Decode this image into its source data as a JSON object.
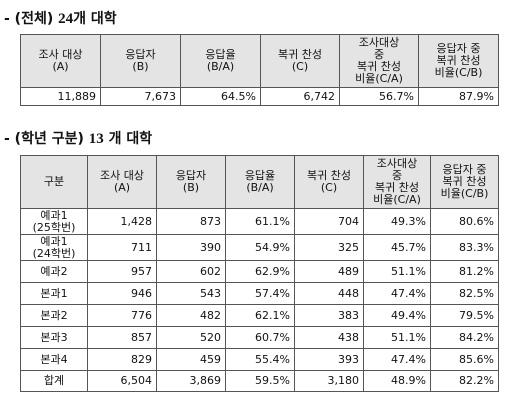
{
  "section1": {
    "title_prefix": "- (전체)",
    "title_num": "24",
    "title_suffix": "개 대학"
  },
  "section2": {
    "title_prefix": "- (학년 구분)",
    "title_num": "13",
    "title_suffix": "개 대학"
  },
  "headers": {
    "category": "구분",
    "survey": [
      "조사 대상",
      "(A)"
    ],
    "respondents": [
      "응답자",
      "(B)"
    ],
    "rate": [
      "응답율",
      "(B/A)"
    ],
    "return_agree": [
      "복귀 찬성",
      "(C)"
    ],
    "ratio_ca": [
      "조사대상",
      "중",
      "복귀 찬성",
      "비율(C/A)"
    ],
    "ratio_cb": [
      "응답자 중",
      "복귀 찬성",
      "비율(C/B)"
    ]
  },
  "table1": {
    "row": [
      "11,889",
      "7,673",
      "64.5%",
      "6,742",
      "56.7%",
      "87.9%"
    ]
  },
  "table2": {
    "rows": [
      {
        "label": [
          "예과1",
          "(25학번)"
        ],
        "cells": [
          "1,428",
          "873",
          "61.1%",
          "704",
          "49.3%",
          "80.6%"
        ]
      },
      {
        "label": [
          "예과1",
          "(24학번)"
        ],
        "cells": [
          "711",
          "390",
          "54.9%",
          "325",
          "45.7%",
          "83.3%"
        ]
      },
      {
        "label": [
          "예과2"
        ],
        "cells": [
          "957",
          "602",
          "62.9%",
          "489",
          "51.1%",
          "81.2%"
        ]
      },
      {
        "label": [
          "본과1"
        ],
        "cells": [
          "946",
          "543",
          "57.4%",
          "448",
          "47.4%",
          "82.5%"
        ]
      },
      {
        "label": [
          "본과2"
        ],
        "cells": [
          "776",
          "482",
          "62.1%",
          "383",
          "49.4%",
          "79.5%"
        ]
      },
      {
        "label": [
          "본과3"
        ],
        "cells": [
          "857",
          "520",
          "60.7%",
          "438",
          "51.1%",
          "84.2%"
        ]
      },
      {
        "label": [
          "본과4"
        ],
        "cells": [
          "829",
          "459",
          "55.4%",
          "393",
          "47.4%",
          "85.6%"
        ]
      },
      {
        "label": [
          "합계"
        ],
        "cells": [
          "6,504",
          "3,869",
          "59.5%",
          "3,180",
          "48.9%",
          "82.2%"
        ]
      }
    ]
  }
}
